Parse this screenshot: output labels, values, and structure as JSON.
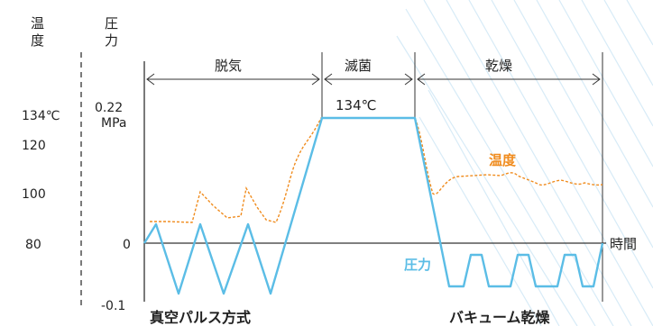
{
  "axes": {
    "temp_title_1": "温",
    "temp_title_2": "度",
    "press_title_1": "圧",
    "press_title_2": "力",
    "temp_ticks": [
      "134℃",
      "120",
      "100",
      "80"
    ],
    "press_top_1": "0.22",
    "press_top_2": "MPa",
    "press_zero": "0",
    "press_bottom": "-0.1",
    "time_label": "時間"
  },
  "phases": [
    {
      "label": "脱気"
    },
    {
      "label": "滅菌"
    },
    {
      "label": "乾燥"
    }
  ],
  "annotations": {
    "sterilize_temp": "134℃",
    "temp_curve": "温度",
    "pressure_curve": "圧力",
    "pulse_method": "真空パルス方式",
    "vacuum_dry": "バキューム乾燥"
  },
  "colors": {
    "pressure": "#5bbde6",
    "temperature": "#f08c1e",
    "stripes": "#d7ebf7",
    "axis": "#333333"
  }
}
